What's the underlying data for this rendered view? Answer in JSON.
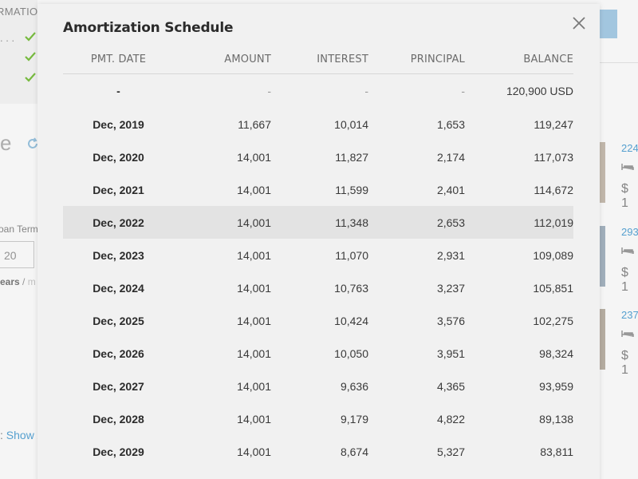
{
  "background": {
    "confirmation_fragment": "RMATION",
    "dots": ". . .",
    "title_fragment": "e",
    "loan_term_label": "oan Term",
    "loan_term_value": "20",
    "years_label": "ears",
    "years_sep": "/",
    "months_fragment": "m",
    "show_prefix": ":",
    "show_link": "Show",
    "show_suffix": "/",
    "listings": [
      {
        "number": "224",
        "price": "$ 1"
      },
      {
        "number": "293",
        "price": "$ 1"
      },
      {
        "number": "237",
        "price": "$ 1"
      }
    ]
  },
  "modal": {
    "title": "Amortization Schedule",
    "close_icon": "close-icon",
    "columns": {
      "date": "PMT. DATE",
      "amount": "AMOUNT",
      "interest": "INTEREST",
      "principal": "PRINCIPAL",
      "balance": "BALANCE"
    },
    "rows": [
      {
        "date": "-",
        "amount": "-",
        "interest": "-",
        "principal": "-",
        "balance": "120,900 USD"
      },
      {
        "date": "Dec, 2019",
        "amount": "11,667",
        "interest": "10,014",
        "principal": "1,653",
        "balance": "119,247"
      },
      {
        "date": "Dec, 2020",
        "amount": "14,001",
        "interest": "11,827",
        "principal": "2,174",
        "balance": "117,073"
      },
      {
        "date": "Dec, 2021",
        "amount": "14,001",
        "interest": "11,599",
        "principal": "2,401",
        "balance": "114,672"
      },
      {
        "date": "Dec, 2022",
        "amount": "14,001",
        "interest": "11,348",
        "principal": "2,653",
        "balance": "112,019"
      },
      {
        "date": "Dec, 2023",
        "amount": "14,001",
        "interest": "11,070",
        "principal": "2,931",
        "balance": "109,089"
      },
      {
        "date": "Dec, 2024",
        "amount": "14,001",
        "interest": "10,763",
        "principal": "3,237",
        "balance": "105,851"
      },
      {
        "date": "Dec, 2025",
        "amount": "14,001",
        "interest": "10,424",
        "principal": "3,576",
        "balance": "102,275"
      },
      {
        "date": "Dec, 2026",
        "amount": "14,001",
        "interest": "10,050",
        "principal": "3,951",
        "balance": "98,324"
      },
      {
        "date": "Dec, 2027",
        "amount": "14,001",
        "interest": "9,636",
        "principal": "4,365",
        "balance": "93,959"
      },
      {
        "date": "Dec, 2028",
        "amount": "14,001",
        "interest": "9,179",
        "principal": "4,822",
        "balance": "89,138"
      },
      {
        "date": "Dec, 2029",
        "amount": "14,001",
        "interest": "8,674",
        "principal": "5,327",
        "balance": "83,811"
      }
    ],
    "highlighted_row": "Dec, 2022"
  },
  "colors": {
    "accent_link": "#5aa7d8",
    "check_green": "#7cc242",
    "modal_bg": "#f1f1f1",
    "row_highlight": "#e3e3e3"
  }
}
